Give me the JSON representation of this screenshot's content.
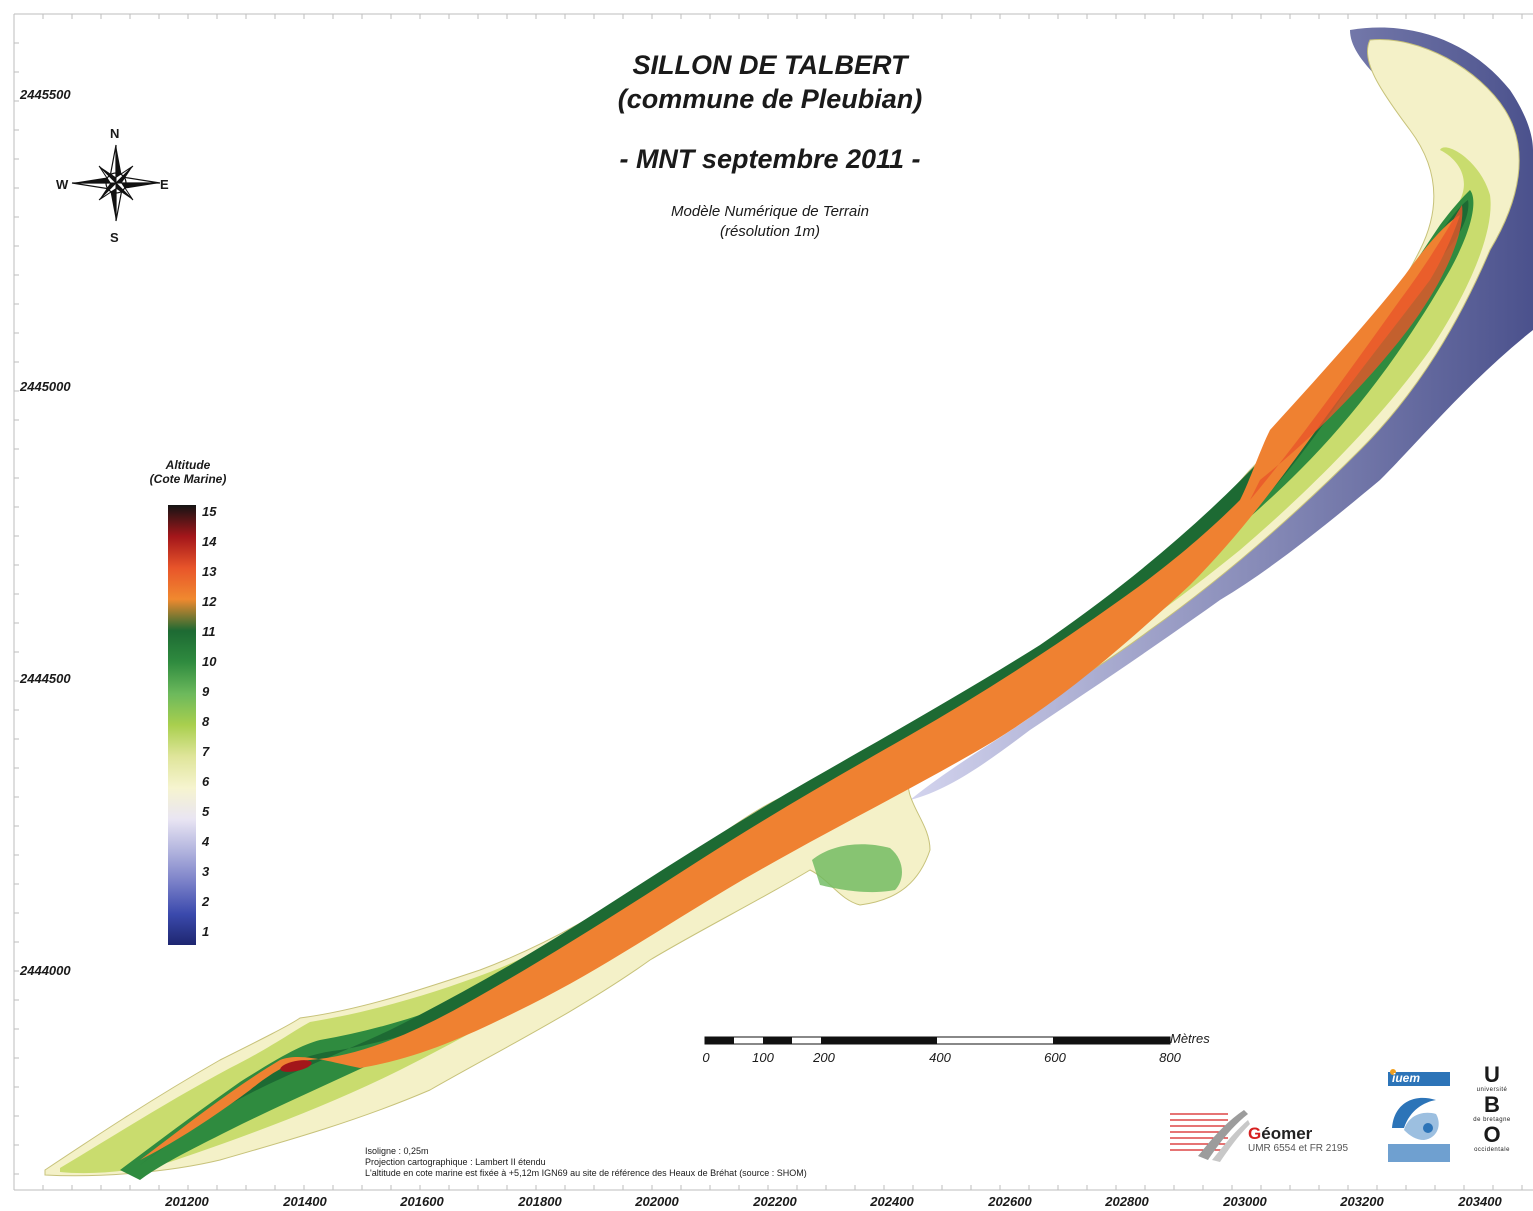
{
  "title": "SILLON DE TALBERT",
  "subtitle": "(commune de Pleubian)",
  "date_title": "- MNT septembre 2011 -",
  "description_line1": "Modèle Numérique de Terrain",
  "description_line2": "(résolution 1m)",
  "compass": {
    "north": "N",
    "south": "S",
    "east": "E",
    "west": "W"
  },
  "y_axis_labels": [
    "2445500",
    "2445000",
    "2444500",
    "2444000"
  ],
  "x_axis_labels": [
    "201200",
    "201400",
    "201600",
    "201800",
    "202000",
    "202200",
    "202400",
    "202600",
    "202800",
    "203000",
    "203200",
    "203400"
  ],
  "legend": {
    "title_line1": "Altitude",
    "title_line2": "(Cote Marine)",
    "values": [
      "15",
      "14",
      "13",
      "12",
      "11",
      "10",
      "9",
      "8",
      "7",
      "6",
      "5",
      "4",
      "3",
      "2",
      "1"
    ],
    "colors": {
      "15": "#141414",
      "14": "#a3161a",
      "13": "#e8552a",
      "12": "#f0892f",
      "11": "#1d6a33",
      "10": "#2f8b3f",
      "9": "#6cb95c",
      "8": "#a9cf4e",
      "7": "#dfe59a",
      "6": "#f6f4cf",
      "5": "#e9e5f3",
      "4": "#b2b4de",
      "3": "#7a80c8",
      "2": "#3b4aad",
      "1": "#1e2670"
    }
  },
  "scale_bar": {
    "labels": [
      "0",
      "100",
      "200",
      "400",
      "600",
      "800"
    ],
    "unit": "Mètres"
  },
  "notes": [
    "Isoligne : 0,25m",
    "Projection cartographique : Lambert II étendu",
    "L'altitude en cote marine est fixée à +5,12m IGN69 au site de référence des Heaux de Bréhat (source : SHOM)"
  ],
  "logos": {
    "geomer_name_initial": "G",
    "geomer_name_rest": "éomer",
    "geomer_sub": "UMR 6554 et FR 2195",
    "iuem": "iuem",
    "ubo_top": "U",
    "ubo_line1": "université",
    "ubo_mid": "B",
    "ubo_line2": "de bretagne",
    "ubo_bottom": "O",
    "ubo_line3": "occidentale"
  }
}
